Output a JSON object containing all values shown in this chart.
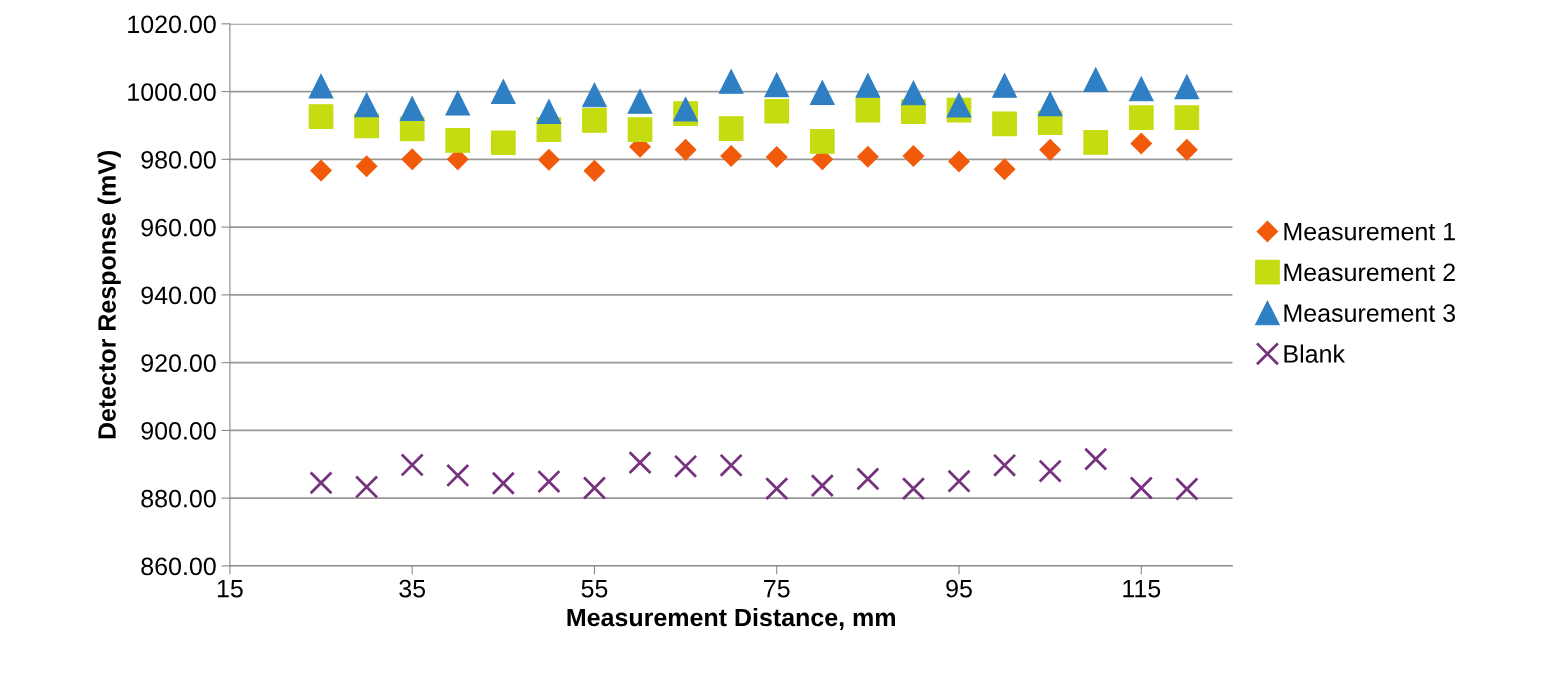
{
  "chart_data": {
    "type": "scatter",
    "xlabel": "Measurement Distance, mm",
    "ylabel": "Detector Response (mV)",
    "x": [
      25,
      30,
      35,
      40,
      45,
      50,
      55,
      60,
      65,
      70,
      75,
      80,
      85,
      90,
      95,
      100,
      105,
      110,
      115,
      120
    ],
    "series": [
      {
        "name": "Measurement 1",
        "color": "#f05a0a",
        "marker": "diamond",
        "values": [
          976.7,
          978.0,
          980.0,
          980.0,
          null,
          979.9,
          976.6,
          983.7,
          982.8,
          981.0,
          980.7,
          980.0,
          980.8,
          981.0,
          979.4,
          977.1,
          982.8,
          null,
          984.7,
          982.8
        ]
      },
      {
        "name": "Measurement 2",
        "color": "#c4dc10",
        "marker": "square",
        "values": [
          992.6,
          989.9,
          989.0,
          985.6,
          984.9,
          988.8,
          991.5,
          988.8,
          993.5,
          989.1,
          994.2,
          985.3,
          994.5,
          994.1,
          994.5,
          990.5,
          990.8,
          985.0,
          992.3,
          992.3
        ]
      },
      {
        "name": "Measurement 3",
        "color": "#2e7fc4",
        "marker": "triangle",
        "values": [
          1001.6,
          996.1,
          995.0,
          996.6,
          1000.0,
          994.1,
          999.0,
          997.1,
          994.8,
          1003.0,
          1002.0,
          999.7,
          1001.8,
          999.6,
          996.0,
          1001.8,
          996.4,
          1003.5,
          1000.8,
          1001.4
        ]
      },
      {
        "name": "Blank",
        "color": "#76327e",
        "marker": "cross",
        "values": [
          884.5,
          883.3,
          889.8,
          886.7,
          884.4,
          884.9,
          883.0,
          890.5,
          889.4,
          889.7,
          882.8,
          883.7,
          885.7,
          882.8,
          885.0,
          889.7,
          888.0,
          891.5,
          883.0,
          882.7
        ]
      }
    ],
    "xlim": [
      15,
      125
    ],
    "xticks": [
      15,
      35,
      55,
      75,
      95,
      115
    ],
    "ylim": [
      860,
      1020
    ],
    "yticks": [
      {
        "value": 860,
        "label": "860.00"
      },
      {
        "value": 880,
        "label": "880.00"
      },
      {
        "value": 900,
        "label": "900.00"
      },
      {
        "value": 920,
        "label": "920.00"
      },
      {
        "value": 940,
        "label": "940.00"
      },
      {
        "value": 960,
        "label": "960.00"
      },
      {
        "value": 980,
        "label": "980.00"
      },
      {
        "value": 1000,
        "label": "1000.00"
      },
      {
        "value": 1020,
        "label": "1020.00"
      }
    ],
    "grid": "y",
    "legend": "right"
  }
}
